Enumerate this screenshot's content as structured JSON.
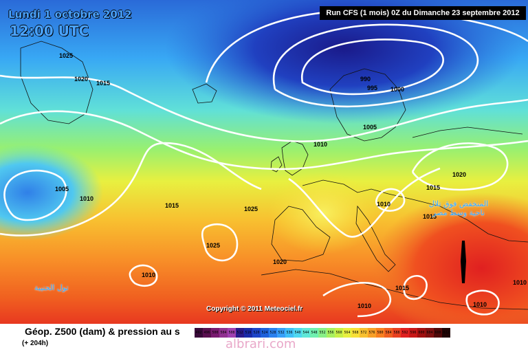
{
  "header": {
    "date_line": "Lundi 1 octobre 2012",
    "time_line": "12:00 UTC",
    "run_info": "Run CFS (1 mois) 0Z du Dimanche 23 septembre 2012"
  },
  "map": {
    "copyright": "Copyright © 2011 Meteociel.fr",
    "arabic_labels": [
      "تول الحنيبة",
      "المنخفض فوق تلال ناحية وسط مصر"
    ],
    "isobar_labels": [
      "1025",
      "1020",
      "1015",
      "1005",
      "1010",
      "1015",
      "1025",
      "1025",
      "1010",
      "1020",
      "990",
      "995",
      "1000",
      "1005",
      "1010",
      "1010",
      "1015",
      "1015",
      "1020",
      "1010",
      "1015",
      "1010",
      "1010",
      "1010",
      "1005"
    ]
  },
  "footer": {
    "title": "Géop. Z500 (dam) & pression au s",
    "subtitle": "(+ 204h)",
    "watermark": "albrari.com",
    "scale_values": [
      "492",
      "496",
      "500",
      "504",
      "508",
      "512",
      "516",
      "520",
      "524",
      "528",
      "532",
      "536",
      "540",
      "544",
      "548",
      "552",
      "556",
      "560",
      "564",
      "568",
      "572",
      "576",
      "580",
      "584",
      "588",
      "592",
      "596",
      "600",
      "604",
      "608",
      "612"
    ],
    "scale_colors": [
      "#3a0a3a",
      "#5a1050",
      "#7a1a70",
      "#903090",
      "#a040b0",
      "#2a1a8c",
      "#1a2aa8",
      "#1e44c8",
      "#2060dc",
      "#2a80ee",
      "#38a0f8",
      "#40c0f8",
      "#50d8f0",
      "#60e8d8",
      "#70f0b0",
      "#88f088",
      "#a8f060",
      "#c8f048",
      "#e8f040",
      "#f8e038",
      "#f8c030",
      "#f8a028",
      "#f88020",
      "#f06020",
      "#e84020",
      "#e02020",
      "#c81818",
      "#a01010",
      "#801010",
      "#500808",
      "#200404"
    ]
  }
}
